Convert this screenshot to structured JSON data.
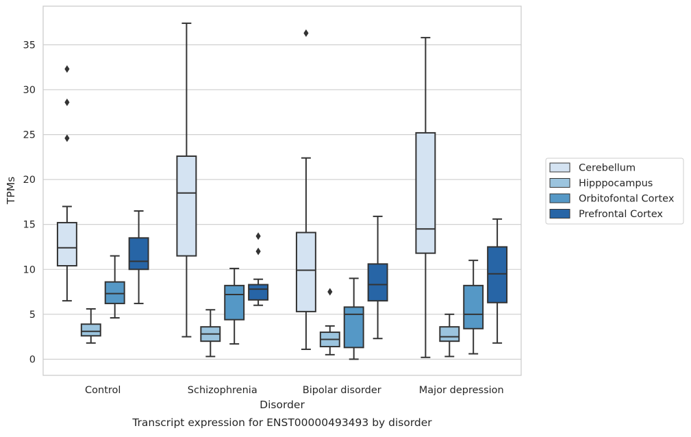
{
  "chart_data": {
    "type": "box",
    "caption": "Transcript expression for ENST00000493493 by disorder",
    "xlabel": "Disorder",
    "ylabel": "TPMs",
    "ylim": [
      -1.8,
      39.3
    ],
    "yticks": [
      0,
      5,
      10,
      15,
      20,
      25,
      30,
      35
    ],
    "grid": "horizontal",
    "legend_position": "right",
    "categories": [
      "Control",
      "Schizophrenia",
      "Bipolar disorder",
      "Major depression"
    ],
    "series": [
      {
        "name": "Cerebellum",
        "color": "#d4e3f2",
        "boxes": [
          {
            "whisker_low": 6.5,
            "q1": 10.4,
            "median": 12.4,
            "q3": 15.2,
            "whisker_high": 17.0,
            "outliers": [
              24.6,
              28.6,
              32.3
            ]
          },
          {
            "whisker_low": 2.5,
            "q1": 11.5,
            "median": 18.5,
            "q3": 22.6,
            "whisker_high": 37.4,
            "outliers": []
          },
          {
            "whisker_low": 1.1,
            "q1": 5.3,
            "median": 9.9,
            "q3": 14.1,
            "whisker_high": 22.4,
            "outliers": [
              36.3
            ]
          },
          {
            "whisker_low": 0.2,
            "q1": 11.8,
            "median": 14.5,
            "q3": 25.2,
            "whisker_high": 35.8,
            "outliers": []
          }
        ]
      },
      {
        "name": "Hipppocampus",
        "color": "#9bc4de",
        "boxes": [
          {
            "whisker_low": 1.8,
            "q1": 2.6,
            "median": 3.1,
            "q3": 3.9,
            "whisker_high": 5.6,
            "outliers": []
          },
          {
            "whisker_low": 0.3,
            "q1": 2.0,
            "median": 2.8,
            "q3": 3.6,
            "whisker_high": 5.5,
            "outliers": []
          },
          {
            "whisker_low": 0.5,
            "q1": 1.4,
            "median": 2.2,
            "q3": 3.0,
            "whisker_high": 3.7,
            "outliers": [
              7.5
            ]
          },
          {
            "whisker_low": 0.3,
            "q1": 2.0,
            "median": 2.5,
            "q3": 3.6,
            "whisker_high": 5.0,
            "outliers": []
          }
        ]
      },
      {
        "name": "Orbitofontal Cortex",
        "color": "#5598c6",
        "boxes": [
          {
            "whisker_low": 4.6,
            "q1": 6.2,
            "median": 7.3,
            "q3": 8.6,
            "whisker_high": 11.5,
            "outliers": []
          },
          {
            "whisker_low": 1.7,
            "q1": 4.4,
            "median": 7.2,
            "q3": 8.2,
            "whisker_high": 10.1,
            "outliers": []
          },
          {
            "whisker_low": 0.0,
            "q1": 1.3,
            "median": 5.0,
            "q3": 5.8,
            "whisker_high": 9.0,
            "outliers": []
          },
          {
            "whisker_low": 0.6,
            "q1": 3.4,
            "median": 5.0,
            "q3": 8.2,
            "whisker_high": 11.0,
            "outliers": []
          }
        ]
      },
      {
        "name": "Prefrontal Cortex",
        "color": "#2765a6",
        "boxes": [
          {
            "whisker_low": 6.2,
            "q1": 10.0,
            "median": 10.9,
            "q3": 13.5,
            "whisker_high": 16.5,
            "outliers": []
          },
          {
            "whisker_low": 6.0,
            "q1": 6.6,
            "median": 7.8,
            "q3": 8.3,
            "whisker_high": 8.9,
            "outliers": [
              12.0,
              13.7
            ]
          },
          {
            "whisker_low": 2.3,
            "q1": 6.5,
            "median": 8.3,
            "q3": 10.6,
            "whisker_high": 15.9,
            "outliers": []
          },
          {
            "whisker_low": 1.8,
            "q1": 6.3,
            "median": 9.5,
            "q3": 12.5,
            "whisker_high": 15.6,
            "outliers": []
          }
        ]
      }
    ]
  }
}
